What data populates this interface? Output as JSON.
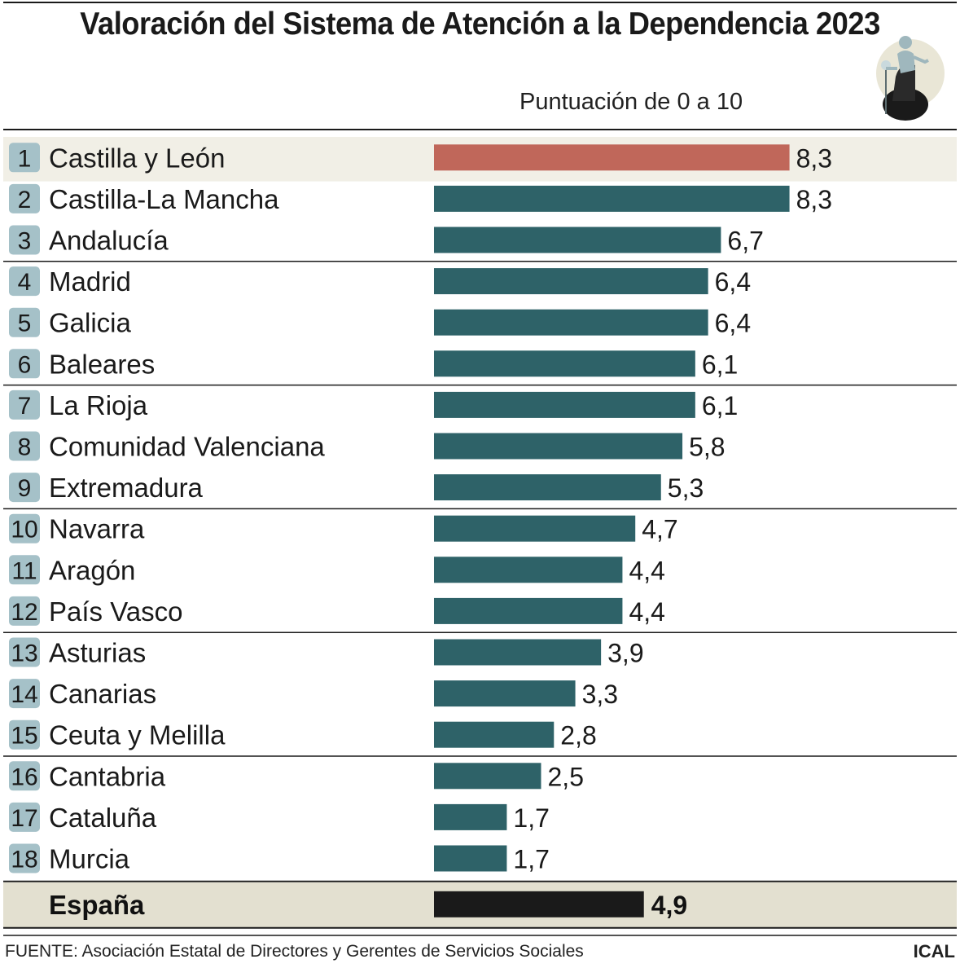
{
  "header": {
    "title": "Valoración del Sistema de Atención a la Dependencia 2023",
    "subtitle": "Puntuación de 0 a 10"
  },
  "footer": {
    "source": "FUENTE: Asociación Estatal de Directores y Gerentes de Servicios Sociales",
    "credit": "ICAL"
  },
  "icon": "elderly-person-wheelchair-icon",
  "colors": {
    "bar": "#2e6268",
    "highlight_bar": "#c0675a",
    "total_bar": "#1a1a1a",
    "highlight_row_bg": "#f1efe6",
    "total_row_bg": "#e3e0d0",
    "rank_badge": "#a5c1c8"
  },
  "chart_data": {
    "type": "bar",
    "orientation": "horizontal",
    "xlim": [
      0,
      10
    ],
    "xlabel": "Puntuación de 0 a 10",
    "categories": [
      "Castilla y León",
      "Castilla-La Mancha",
      "Andalucía",
      "Madrid",
      "Galicia",
      "Baleares",
      "La Rioja",
      "Comunidad Valenciana",
      "Extremadura",
      "Navarra",
      "Aragón",
      "País Vasco",
      "Asturias",
      "Canarias",
      "Ceuta y Melilla",
      "Cantabria",
      "Cataluña",
      "Murcia"
    ],
    "ranks": [
      "1",
      "2",
      "3",
      "4",
      "5",
      "6",
      "7",
      "8",
      "9",
      "10",
      "11",
      "12",
      "13",
      "14",
      "15",
      "16",
      "17",
      "18"
    ],
    "values": [
      8.3,
      8.3,
      6.7,
      6.4,
      6.4,
      6.1,
      6.1,
      5.8,
      5.3,
      4.7,
      4.4,
      4.4,
      3.9,
      3.3,
      2.8,
      2.5,
      1.7,
      1.7
    ],
    "value_labels": [
      "8,3",
      "8,3",
      "6,7",
      "6,4",
      "6,4",
      "6,1",
      "6,1",
      "5,8",
      "5,3",
      "4,7",
      "4,4",
      "4,4",
      "3,9",
      "3,3",
      "2,8",
      "2,5",
      "1,7",
      "1,7"
    ],
    "highlight": "Castilla y León",
    "total": {
      "label": "España",
      "value": 4.9,
      "value_label": "4,9"
    },
    "grid": false
  }
}
